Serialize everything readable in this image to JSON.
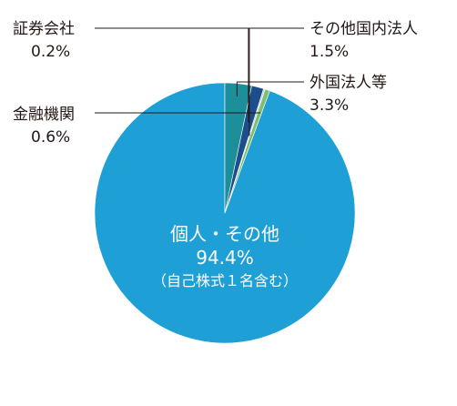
{
  "chart_data": {
    "type": "pie",
    "start_angle_deg": 0,
    "direction": "counterclockwise",
    "slices": [
      {
        "name": "個人・その他",
        "value": 94.4,
        "value_label": "94.4%",
        "note": "（自己株式１名含む）",
        "color": "#1ea0d6",
        "label_position": "inside"
      },
      {
        "name": "金融機関",
        "value": 0.6,
        "value_label": "0.6%",
        "color": "#7dbf6b",
        "label_position": "left"
      },
      {
        "name": "証券会社",
        "value": 0.2,
        "value_label": "0.2%",
        "color": "#bfcfe0",
        "label_position": "top-left"
      },
      {
        "name": "その他国内法人",
        "value": 1.5,
        "value_label": "1.5%",
        "color": "#1d4e8c",
        "label_position": "top-right"
      },
      {
        "name": "外国法人等",
        "value": 3.3,
        "value_label": "3.3%",
        "color": "#1d8f9a",
        "label_position": "right"
      }
    ]
  }
}
